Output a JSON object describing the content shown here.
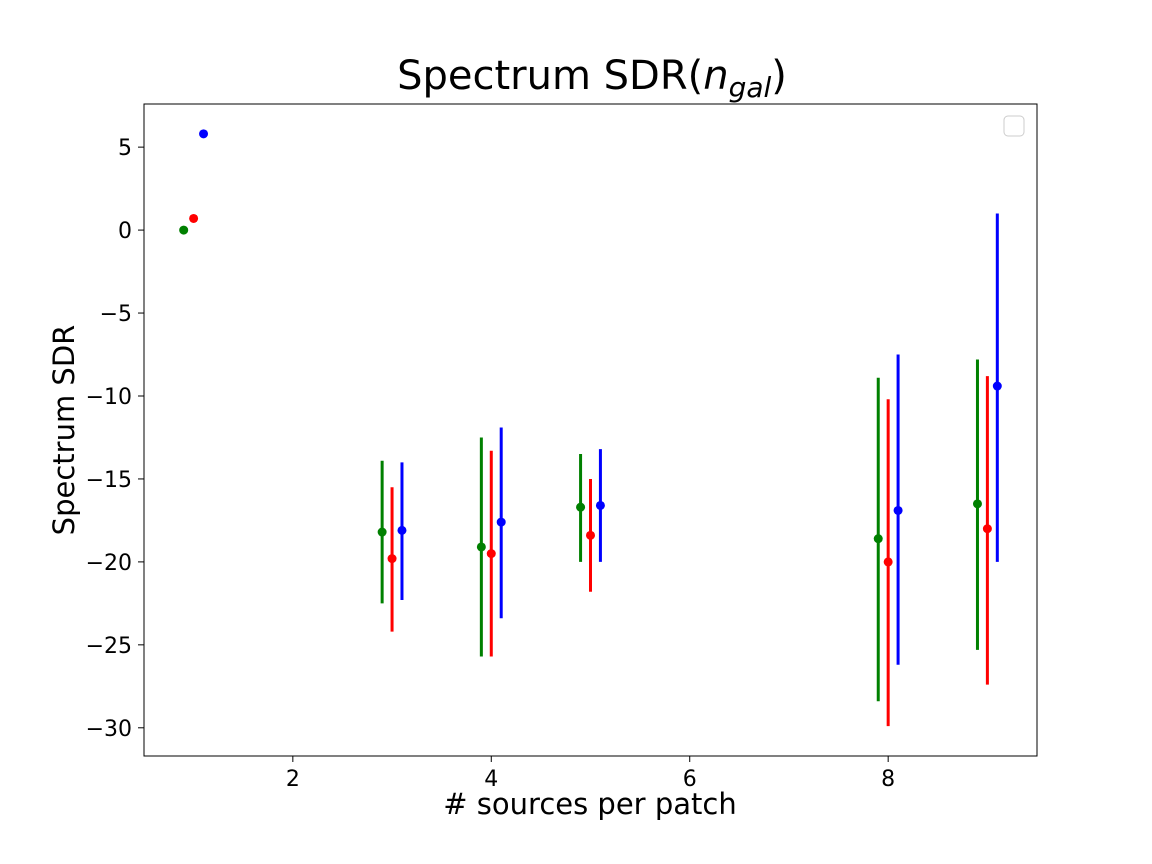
{
  "chart_data": {
    "type": "scatter",
    "title": "Spectrum SDR(",
    "title_math": "n",
    "title_sub": "gal",
    "title_close": ")",
    "xlabel": "# sources per patch",
    "ylabel": "Spectrum SDR",
    "xlim": [
      0.5,
      9.5
    ],
    "ylim": [
      -31.7,
      7.6
    ],
    "xticks": [
      2,
      4,
      6,
      8
    ],
    "xtick_labels": [
      "2",
      "4",
      "6",
      "8"
    ],
    "yticks": [
      5,
      0,
      -5,
      -10,
      -15,
      -20,
      -25,
      -30
    ],
    "ytick_labels": [
      "5",
      "0",
      "−5",
      "−10",
      "−15",
      "−20",
      "−25",
      "−30"
    ],
    "grid": false,
    "legend": {
      "placement": "upper right",
      "entries": []
    },
    "series": [
      {
        "color": "#008000",
        "x": [
          0.9,
          2.9,
          3.9,
          4.9,
          7.9,
          8.9
        ],
        "y": [
          0.0,
          -18.2,
          -19.1,
          -16.7,
          -18.6,
          -16.5
        ],
        "err_low": [
          null,
          -22.5,
          -25.7,
          -20.0,
          -28.4,
          -25.3
        ],
        "err_high": [
          null,
          -13.9,
          -12.5,
          -13.5,
          -8.9,
          -7.8
        ]
      },
      {
        "color": "#ff0000",
        "x": [
          1.0,
          3.0,
          4.0,
          5.0,
          8.0,
          9.0
        ],
        "y": [
          0.7,
          -19.8,
          -19.5,
          -18.4,
          -20.0,
          -18.0
        ],
        "err_low": [
          null,
          -24.2,
          -25.7,
          -21.8,
          -29.9,
          -27.4
        ],
        "err_high": [
          null,
          -15.5,
          -13.3,
          -15.0,
          -10.2,
          -8.8
        ]
      },
      {
        "color": "#0000ff",
        "x": [
          1.1,
          3.1,
          4.1,
          5.1,
          8.1,
          9.1
        ],
        "y": [
          5.8,
          -18.1,
          -17.6,
          -16.6,
          -16.9,
          -9.4
        ],
        "err_low": [
          null,
          -22.3,
          -23.4,
          -20.0,
          -26.2,
          -20.0
        ],
        "err_high": [
          null,
          -14.0,
          -11.9,
          -13.2,
          -7.5,
          1.0
        ]
      }
    ]
  }
}
